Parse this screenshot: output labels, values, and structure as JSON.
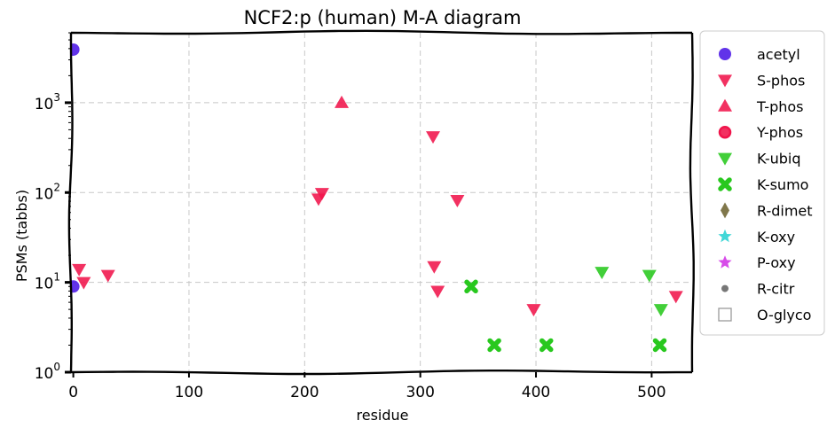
{
  "chart_data": {
    "type": "scatter",
    "title": "NCF2:p (human) M-A diagram",
    "xlabel": "residue",
    "ylabel": "PSMs (tabbs)",
    "xscale": "linear",
    "yscale": "log",
    "xlim": [
      -2,
      535
    ],
    "ylim": [
      1,
      6000
    ],
    "xticks": [
      0,
      100,
      200,
      300,
      400,
      500
    ],
    "xtick_labels": [
      "0",
      "100",
      "200",
      "300",
      "400",
      "500"
    ],
    "yticks": [
      1,
      10,
      100,
      1000
    ],
    "ytick_labels": [
      "10^0",
      "10^1",
      "10^2",
      "10^3"
    ],
    "grid": true,
    "legend_position": "outside-right",
    "series": [
      {
        "name": "acetyl",
        "marker": "circle",
        "color": "#4b17e6",
        "points": [
          [
            0,
            3900
          ],
          [
            0,
            9
          ]
        ]
      },
      {
        "name": "S-phos",
        "marker": "triangle-down",
        "color": "#f0144b",
        "points": [
          [
            5,
            14
          ],
          [
            9,
            10
          ],
          [
            30,
            12
          ],
          [
            212,
            85
          ],
          [
            215,
            98
          ],
          [
            311,
            420
          ],
          [
            312,
            15
          ],
          [
            315,
            8
          ],
          [
            332,
            82
          ],
          [
            398,
            5
          ],
          [
            521,
            7
          ]
        ]
      },
      {
        "name": "T-phos",
        "marker": "triangle-up",
        "color": "#f0144b",
        "points": [
          [
            232,
            1000
          ]
        ]
      },
      {
        "name": "Y-phos",
        "marker": "circle-ring",
        "color": "#f0144b",
        "points": []
      },
      {
        "name": "K-ubiq",
        "marker": "triangle-down",
        "color": "#28c81e",
        "points": [
          [
            457,
            13
          ],
          [
            498,
            12
          ],
          [
            508,
            5
          ]
        ]
      },
      {
        "name": "K-sumo",
        "marker": "x-thick",
        "color": "#28c81e",
        "points": [
          [
            344,
            9
          ],
          [
            364,
            2
          ],
          [
            409,
            2
          ],
          [
            507,
            2
          ]
        ]
      },
      {
        "name": "R-dimet",
        "marker": "diamond",
        "color": "#6e6432",
        "points": []
      },
      {
        "name": "K-oxy",
        "marker": "star",
        "color": "#28d2d2",
        "points": []
      },
      {
        "name": "P-oxy",
        "marker": "star",
        "color": "#d232e6",
        "points": []
      },
      {
        "name": "R-citr",
        "marker": "dot",
        "color": "#646464",
        "points": []
      },
      {
        "name": "O-glyco",
        "marker": "square-open",
        "color": "#9a9a9a",
        "points": []
      }
    ]
  }
}
